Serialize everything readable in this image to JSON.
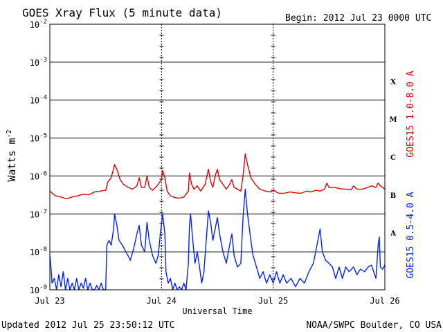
{
  "chart_data": {
    "type": "line",
    "title": "GOES Xray Flux (5 minute data)",
    "begin_label": "Begin:  2012 Jul 23 0000 UTC",
    "xlabel": "Universal Time",
    "ylabel": "Watts m",
    "ylabel_sup": "-2",
    "y_scale": "log",
    "ylim": [
      1e-09,
      0.01
    ],
    "xlim_days": [
      0,
      3
    ],
    "x_ticks": [
      {
        "day": 0,
        "label": "Jul 23"
      },
      {
        "day": 1,
        "label": "Jul 24"
      },
      {
        "day": 2,
        "label": "Jul 25"
      },
      {
        "day": 3,
        "label": "Jul 26"
      }
    ],
    "y_ticks": [
      {
        "exp": -9,
        "label": "10",
        "sup": "-9"
      },
      {
        "exp": -8,
        "label": "10",
        "sup": "-8"
      },
      {
        "exp": -7,
        "label": "10",
        "sup": "-7"
      },
      {
        "exp": -6,
        "label": "10",
        "sup": "-6"
      },
      {
        "exp": -5,
        "label": "10",
        "sup": "-5"
      },
      {
        "exp": -4,
        "label": "10",
        "sup": "-4"
      },
      {
        "exp": -3,
        "label": "10",
        "sup": "-3"
      },
      {
        "exp": -2,
        "label": "10",
        "sup": "-2"
      }
    ],
    "flare_classes": [
      {
        "label": "X",
        "exp": -3.5
      },
      {
        "label": "M",
        "exp": -4.5
      },
      {
        "label": "C",
        "exp": -5.5
      },
      {
        "label": "B",
        "exp": -6.5
      },
      {
        "label": "A",
        "exp": -7.5
      }
    ],
    "grid": true,
    "series": [
      {
        "name": "GOES15 1.0-8.0 A",
        "color": "#e00000",
        "points": [
          [
            0.0,
            4e-07
          ],
          [
            0.05,
            3e-07
          ],
          [
            0.1,
            2.8e-07
          ],
          [
            0.15,
            2.5e-07
          ],
          [
            0.2,
            2.8e-07
          ],
          [
            0.25,
            3e-07
          ],
          [
            0.3,
            3.3e-07
          ],
          [
            0.35,
            3.2e-07
          ],
          [
            0.4,
            3.8e-07
          ],
          [
            0.45,
            4e-07
          ],
          [
            0.5,
            4.2e-07
          ],
          [
            0.52,
            7e-07
          ],
          [
            0.55,
            9e-07
          ],
          [
            0.58,
            2e-06
          ],
          [
            0.6,
            1.5e-06
          ],
          [
            0.63,
            8e-07
          ],
          [
            0.66,
            6e-07
          ],
          [
            0.7,
            5e-07
          ],
          [
            0.74,
            4.5e-07
          ],
          [
            0.78,
            5.5e-07
          ],
          [
            0.8,
            9e-07
          ],
          [
            0.82,
            5e-07
          ],
          [
            0.85,
            5e-07
          ],
          [
            0.87,
            1e-06
          ],
          [
            0.89,
            5e-07
          ],
          [
            0.92,
            4.2e-07
          ],
          [
            0.96,
            5.5e-07
          ],
          [
            1.0,
            8e-07
          ],
          [
            1.01,
            1.4e-06
          ],
          [
            1.03,
            9e-07
          ],
          [
            1.05,
            4e-07
          ],
          [
            1.08,
            3e-07
          ],
          [
            1.12,
            2.7e-07
          ],
          [
            1.16,
            2.6e-07
          ],
          [
            1.2,
            2.8e-07
          ],
          [
            1.24,
            4e-07
          ],
          [
            1.25,
            1.2e-06
          ],
          [
            1.27,
            6e-07
          ],
          [
            1.29,
            4.5e-07
          ],
          [
            1.32,
            5.5e-07
          ],
          [
            1.35,
            4e-07
          ],
          [
            1.39,
            6e-07
          ],
          [
            1.42,
            1.5e-06
          ],
          [
            1.44,
            7e-07
          ],
          [
            1.46,
            5e-07
          ],
          [
            1.48,
            1e-06
          ],
          [
            1.5,
            1.5e-06
          ],
          [
            1.52,
            8e-07
          ],
          [
            1.55,
            6e-07
          ],
          [
            1.58,
            4.5e-07
          ],
          [
            1.61,
            6e-07
          ],
          [
            1.63,
            8e-07
          ],
          [
            1.65,
            5e-07
          ],
          [
            1.68,
            4.5e-07
          ],
          [
            1.71,
            4e-07
          ],
          [
            1.73,
            1e-06
          ],
          [
            1.75,
            3.8e-06
          ],
          [
            1.77,
            2e-06
          ],
          [
            1.8,
            9e-07
          ],
          [
            1.84,
            6e-07
          ],
          [
            1.88,
            4.5e-07
          ],
          [
            1.93,
            4e-07
          ],
          [
            1.98,
            3.8e-07
          ],
          [
            2.0,
            4.2e-07
          ],
          [
            2.05,
            3.5e-07
          ],
          [
            2.1,
            3.5e-07
          ],
          [
            2.15,
            3.8e-07
          ],
          [
            2.2,
            3.6e-07
          ],
          [
            2.25,
            3.5e-07
          ],
          [
            2.3,
            4e-07
          ],
          [
            2.34,
            3.8e-07
          ],
          [
            2.38,
            4.2e-07
          ],
          [
            2.42,
            4e-07
          ],
          [
            2.46,
            4.5e-07
          ],
          [
            2.48,
            6.5e-07
          ],
          [
            2.5,
            5e-07
          ],
          [
            2.55,
            5e-07
          ],
          [
            2.6,
            4.6e-07
          ],
          [
            2.65,
            4.5e-07
          ],
          [
            2.7,
            4.4e-07
          ],
          [
            2.72,
            5.5e-07
          ],
          [
            2.75,
            4.5e-07
          ],
          [
            2.8,
            4.5e-07
          ],
          [
            2.85,
            5e-07
          ],
          [
            2.88,
            5.5e-07
          ],
          [
            2.92,
            5e-07
          ],
          [
            2.94,
            6.5e-07
          ],
          [
            2.96,
            5.5e-07
          ],
          [
            3.0,
            4.5e-07
          ]
        ]
      },
      {
        "name": "GOES15 0.5-4.0 A",
        "color": "#0020ff",
        "points": [
          [
            0.0,
            8e-09
          ],
          [
            0.01,
            4e-09
          ],
          [
            0.02,
            1.5e-09
          ],
          [
            0.04,
            2e-09
          ],
          [
            0.06,
            1e-09
          ],
          [
            0.08,
            2.5e-09
          ],
          [
            0.1,
            1.2e-09
          ],
          [
            0.12,
            3e-09
          ],
          [
            0.14,
            1e-09
          ],
          [
            0.16,
            2e-09
          ],
          [
            0.18,
            1e-09
          ],
          [
            0.2,
            1.5e-09
          ],
          [
            0.22,
            1e-09
          ],
          [
            0.24,
            2e-09
          ],
          [
            0.26,
            1e-09
          ],
          [
            0.28,
            1.5e-09
          ],
          [
            0.3,
            1.1e-09
          ],
          [
            0.32,
            2e-09
          ],
          [
            0.34,
            1e-09
          ],
          [
            0.36,
            1.5e-09
          ],
          [
            0.38,
            1e-09
          ],
          [
            0.4,
            1e-09
          ],
          [
            0.42,
            1.3e-09
          ],
          [
            0.44,
            1e-09
          ],
          [
            0.46,
            1.5e-09
          ],
          [
            0.48,
            1e-09
          ],
          [
            0.5,
            1e-09
          ],
          [
            0.51,
            1.5e-08
          ],
          [
            0.53,
            2e-08
          ],
          [
            0.55,
            1.5e-08
          ],
          [
            0.57,
            4e-08
          ],
          [
            0.58,
            1e-07
          ],
          [
            0.6,
            5e-08
          ],
          [
            0.62,
            2e-08
          ],
          [
            0.65,
            1.5e-08
          ],
          [
            0.68,
            1e-08
          ],
          [
            0.7,
            8e-09
          ],
          [
            0.72,
            6e-09
          ],
          [
            0.75,
            1.2e-08
          ],
          [
            0.78,
            3e-08
          ],
          [
            0.8,
            5e-08
          ],
          [
            0.82,
            1.5e-08
          ],
          [
            0.85,
            1e-08
          ],
          [
            0.87,
            6e-08
          ],
          [
            0.89,
            2e-08
          ],
          [
            0.92,
            8e-09
          ],
          [
            0.95,
            5e-09
          ],
          [
            0.97,
            8e-09
          ],
          [
            0.99,
            3e-08
          ],
          [
            1.01,
            1e-07
          ],
          [
            1.03,
            3e-08
          ],
          [
            1.04,
            3e-09
          ],
          [
            1.06,
            1.5e-09
          ],
          [
            1.08,
            2e-09
          ],
          [
            1.1,
            1e-09
          ],
          [
            1.12,
            1.5e-09
          ],
          [
            1.14,
            1e-09
          ],
          [
            1.16,
            1.2e-09
          ],
          [
            1.18,
            1e-09
          ],
          [
            1.2,
            1.5e-09
          ],
          [
            1.22,
            1e-09
          ],
          [
            1.24,
            5e-09
          ],
          [
            1.25,
            5e-08
          ],
          [
            1.26,
            1e-07
          ],
          [
            1.28,
            2e-08
          ],
          [
            1.3,
            5e-09
          ],
          [
            1.32,
            1e-08
          ],
          [
            1.34,
            4e-09
          ],
          [
            1.36,
            1.5e-09
          ],
          [
            1.38,
            3e-09
          ],
          [
            1.4,
            2e-08
          ],
          [
            1.42,
            1.2e-07
          ],
          [
            1.44,
            6e-08
          ],
          [
            1.46,
            2e-08
          ],
          [
            1.48,
            4e-08
          ],
          [
            1.5,
            8e-08
          ],
          [
            1.52,
            3e-08
          ],
          [
            1.55,
            1e-08
          ],
          [
            1.58,
            5e-09
          ],
          [
            1.61,
            1.5e-08
          ],
          [
            1.63,
            3e-08
          ],
          [
            1.65,
            8e-09
          ],
          [
            1.68,
            4e-09
          ],
          [
            1.71,
            5e-09
          ],
          [
            1.73,
            8e-08
          ],
          [
            1.75,
            4.5e-07
          ],
          [
            1.77,
            1e-07
          ],
          [
            1.8,
            2e-08
          ],
          [
            1.82,
            8e-09
          ],
          [
            1.85,
            4e-09
          ],
          [
            1.88,
            2e-09
          ],
          [
            1.91,
            3e-09
          ],
          [
            1.94,
            1.5e-09
          ],
          [
            1.97,
            2.5e-09
          ],
          [
            2.0,
            1.5e-09
          ],
          [
            2.03,
            3e-09
          ],
          [
            2.06,
            1.5e-09
          ],
          [
            2.09,
            2.5e-09
          ],
          [
            2.12,
            1.5e-09
          ],
          [
            2.16,
            2e-09
          ],
          [
            2.2,
            1.2e-09
          ],
          [
            2.24,
            2e-09
          ],
          [
            2.28,
            1.5e-09
          ],
          [
            2.32,
            3e-09
          ],
          [
            2.36,
            5e-09
          ],
          [
            2.4,
            2e-08
          ],
          [
            2.42,
            4e-08
          ],
          [
            2.44,
            1e-08
          ],
          [
            2.47,
            6e-09
          ],
          [
            2.5,
            5e-09
          ],
          [
            2.53,
            4e-09
          ],
          [
            2.56,
            2e-09
          ],
          [
            2.59,
            4e-09
          ],
          [
            2.62,
            2e-09
          ],
          [
            2.65,
            4e-09
          ],
          [
            2.68,
            3e-09
          ],
          [
            2.72,
            4e-09
          ],
          [
            2.75,
            2.5e-09
          ],
          [
            2.78,
            3.5e-09
          ],
          [
            2.82,
            3e-09
          ],
          [
            2.85,
            4e-09
          ],
          [
            2.88,
            4.5e-09
          ],
          [
            2.92,
            2e-09
          ],
          [
            2.94,
            1.5e-08
          ],
          [
            2.95,
            2.5e-08
          ],
          [
            2.96,
            4e-09
          ],
          [
            2.98,
            3.5e-09
          ],
          [
            3.0,
            4.5e-09
          ]
        ]
      }
    ]
  },
  "footer": {
    "updated": "Updated 2012 Jul 25 23:50:12 UTC",
    "source": "NOAA/SWPC Boulder, CO USA"
  }
}
